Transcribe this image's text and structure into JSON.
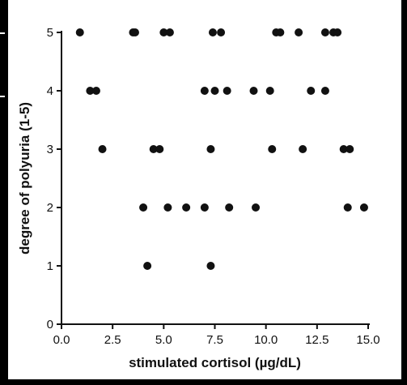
{
  "chart_data": {
    "type": "scatter",
    "xlabel": "stimulated cortisol (µg/dL)",
    "ylabel": "degree  of polyuria (1-5)",
    "xlim": [
      0.0,
      15.0
    ],
    "ylim": [
      0,
      5
    ],
    "x_ticks": [
      "0.0",
      "2.5",
      "5.0",
      "7.5",
      "10.0",
      "12.5",
      "15.0"
    ],
    "y_ticks": [
      "0",
      "1",
      "2",
      "3",
      "4",
      "5"
    ],
    "grid": false,
    "series": [
      {
        "color": "#111111",
        "points": [
          {
            "x": 0.9,
            "y": 5
          },
          {
            "x": 3.5,
            "y": 5
          },
          {
            "x": 3.6,
            "y": 5
          },
          {
            "x": 5.0,
            "y": 5
          },
          {
            "x": 5.3,
            "y": 5
          },
          {
            "x": 7.4,
            "y": 5
          },
          {
            "x": 7.8,
            "y": 5
          },
          {
            "x": 10.5,
            "y": 5
          },
          {
            "x": 10.7,
            "y": 5
          },
          {
            "x": 11.6,
            "y": 5
          },
          {
            "x": 12.9,
            "y": 5
          },
          {
            "x": 13.3,
            "y": 5
          },
          {
            "x": 13.5,
            "y": 5
          },
          {
            "x": 1.4,
            "y": 4
          },
          {
            "x": 1.7,
            "y": 4
          },
          {
            "x": 7.0,
            "y": 4
          },
          {
            "x": 7.5,
            "y": 4
          },
          {
            "x": 8.1,
            "y": 4
          },
          {
            "x": 9.4,
            "y": 4
          },
          {
            "x": 10.2,
            "y": 4
          },
          {
            "x": 12.2,
            "y": 4
          },
          {
            "x": 12.9,
            "y": 4
          },
          {
            "x": 2.0,
            "y": 3
          },
          {
            "x": 4.5,
            "y": 3
          },
          {
            "x": 4.8,
            "y": 3
          },
          {
            "x": 7.3,
            "y": 3
          },
          {
            "x": 10.3,
            "y": 3
          },
          {
            "x": 11.8,
            "y": 3
          },
          {
            "x": 13.8,
            "y": 3
          },
          {
            "x": 14.1,
            "y": 3
          },
          {
            "x": 4.0,
            "y": 2
          },
          {
            "x": 5.2,
            "y": 2
          },
          {
            "x": 6.1,
            "y": 2
          },
          {
            "x": 7.0,
            "y": 2
          },
          {
            "x": 8.2,
            "y": 2
          },
          {
            "x": 9.5,
            "y": 2
          },
          {
            "x": 14.0,
            "y": 2
          },
          {
            "x": 14.8,
            "y": 2
          },
          {
            "x": 4.2,
            "y": 1
          },
          {
            "x": 7.3,
            "y": 1
          }
        ]
      }
    ]
  }
}
